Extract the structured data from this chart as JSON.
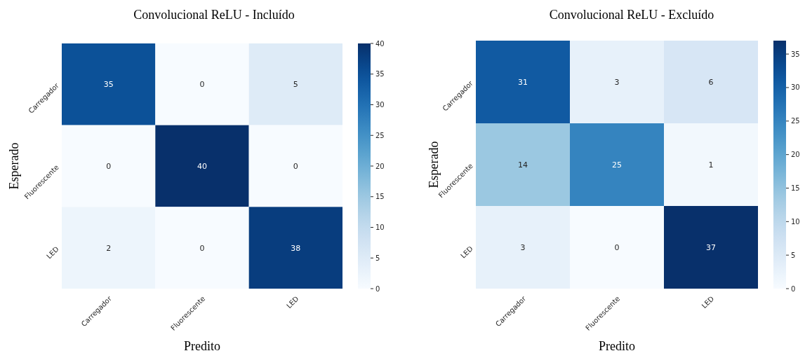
{
  "chart_data": [
    {
      "type": "heatmap",
      "title": "Convolucional ReLU - Incluído",
      "xlabel": "Predito",
      "ylabel": "Esperado",
      "categories": [
        "Carregador",
        "Fluorescente",
        "LED"
      ],
      "y_categories": [
        "Carregador",
        "Fluorescente",
        "LED"
      ],
      "cells": [
        [
          35,
          0,
          5
        ],
        [
          0,
          40,
          0
        ],
        [
          2,
          0,
          38
        ]
      ],
      "clim": [
        0,
        40
      ],
      "cticks": [
        0,
        5,
        10,
        15,
        20,
        25,
        30,
        35,
        40
      ],
      "data_labels": true
    },
    {
      "type": "heatmap",
      "title": "Convolucional ReLU - Excluído",
      "xlabel": "Predito",
      "ylabel": "Esperado",
      "categories": [
        "Carregador",
        "Fluorescente",
        "LED"
      ],
      "y_categories": [
        "Carregador",
        "Fluorescente",
        "LED"
      ],
      "cells": [
        [
          31,
          3,
          6
        ],
        [
          14,
          25,
          1
        ],
        [
          3,
          0,
          37
        ]
      ],
      "clim": [
        0,
        37
      ],
      "cticks": [
        0,
        5,
        10,
        15,
        20,
        25,
        30,
        35
      ],
      "data_labels": true
    }
  ]
}
